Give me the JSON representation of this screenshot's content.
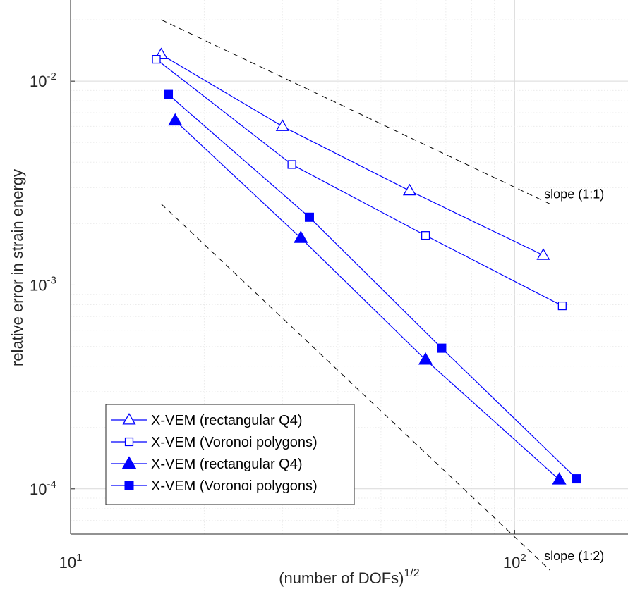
{
  "chart_data": {
    "type": "line",
    "xscale": "log",
    "yscale": "log",
    "xlim": [
      10,
      180
    ],
    "ylim": [
      6e-05,
      0.025
    ],
    "grid": true,
    "legend_position": "bottom-left",
    "xlabel": "(number of DOFs)",
    "xlabel_sup": "1/2",
    "ylabel": "relative error in strain energy",
    "x_ticks": [
      {
        "base": "10",
        "exp": "1"
      },
      {
        "base": "10",
        "exp": "2"
      }
    ],
    "y_ticks": [
      {
        "base": "10",
        "exp": "-2"
      },
      {
        "base": "10",
        "exp": "-3"
      },
      {
        "base": "10",
        "exp": "-4"
      }
    ],
    "y_tick_values": [
      0.01,
      0.001,
      0.0001
    ],
    "x_tick_values": [
      10,
      100
    ],
    "series": [
      {
        "name": "X-VEM (rectangular Q4)",
        "marker": "triangle-open",
        "x": [
          16,
          30,
          58,
          116
        ],
        "y": [
          0.0135,
          0.006,
          0.0029,
          0.0014
        ]
      },
      {
        "name": "X-VEM (Voronoi polygons)",
        "marker": "square-open",
        "x": [
          15.6,
          31.5,
          63,
          128
        ],
        "y": [
          0.0128,
          0.0039,
          0.00175,
          0.00079
        ]
      },
      {
        "name": "X-VEM (rectangular Q4)",
        "marker": "triangle-filled",
        "x": [
          17.2,
          33,
          63,
          126
        ],
        "y": [
          0.0064,
          0.0017,
          0.00043,
          0.000111
        ]
      },
      {
        "name": "X-VEM (Voronoi polygons)",
        "marker": "square-filled",
        "x": [
          16.6,
          34.5,
          68.5,
          138
        ],
        "y": [
          0.0086,
          0.00215,
          0.00049,
          0.000112
        ]
      }
    ],
    "reference_lines": [
      {
        "label": "slope (1:1)",
        "x": [
          16,
          120
        ],
        "y": [
          0.02,
          0.0025
        ]
      },
      {
        "label": "slope (1:2)",
        "x": [
          16,
          120
        ],
        "y": [
          0.0025,
          4e-05
        ]
      }
    ],
    "colors": {
      "series": "#0000ff",
      "reference": "#000000",
      "axes": "#262626",
      "grid_major": "#d9d9d9",
      "grid_minor": "#ebebeb"
    }
  }
}
